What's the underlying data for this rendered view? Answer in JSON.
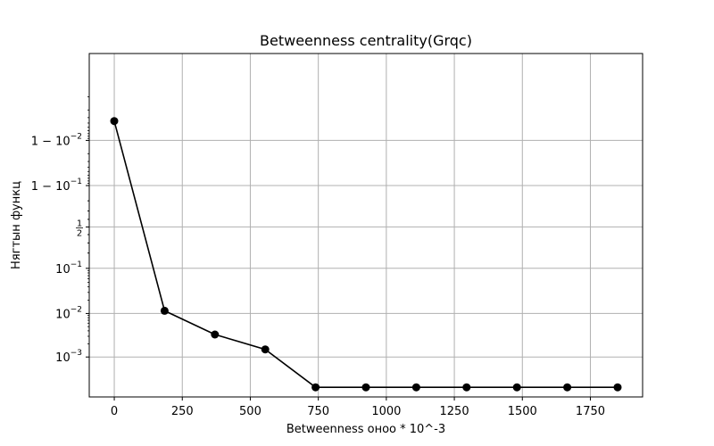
{
  "chart_data": {
    "type": "line",
    "title": "Betweenness centrality(Grqc)",
    "xlabel": "Betweenness оноо * 10^-3",
    "ylabel": "Нягтын функц",
    "yscale": "logit",
    "xlim": [
      -92,
      1942
    ],
    "x_ticks": [
      0,
      250,
      500,
      750,
      1000,
      1250,
      1500,
      1750
    ],
    "x_tick_labels": [
      "0",
      "250",
      "500",
      "750",
      "1000",
      "1250",
      "1500",
      "1750"
    ],
    "y_ticks": [
      {
        "base": "10",
        "exp": "−3"
      },
      {
        "base": "10",
        "exp": "−2"
      },
      {
        "base": "10",
        "exp": "−1"
      },
      {
        "frac": [
          "1",
          "2"
        ]
      },
      {
        "base": "1 − 10",
        "exp": "−1"
      },
      {
        "base": "1 − 10",
        "exp": "−2"
      }
    ],
    "grid": true,
    "legend": "none",
    "line_color": "#000000",
    "series": [
      {
        "x": [
          0,
          185,
          370,
          555,
          740,
          925,
          1110,
          1295,
          1480,
          1665,
          1850
        ],
        "y": [
          0.9964,
          0.0115,
          0.0033,
          0.0015,
          0.0002,
          0.0002,
          0.0002,
          0.0002,
          0.0002,
          0.0002,
          0.0002
        ]
      }
    ]
  }
}
